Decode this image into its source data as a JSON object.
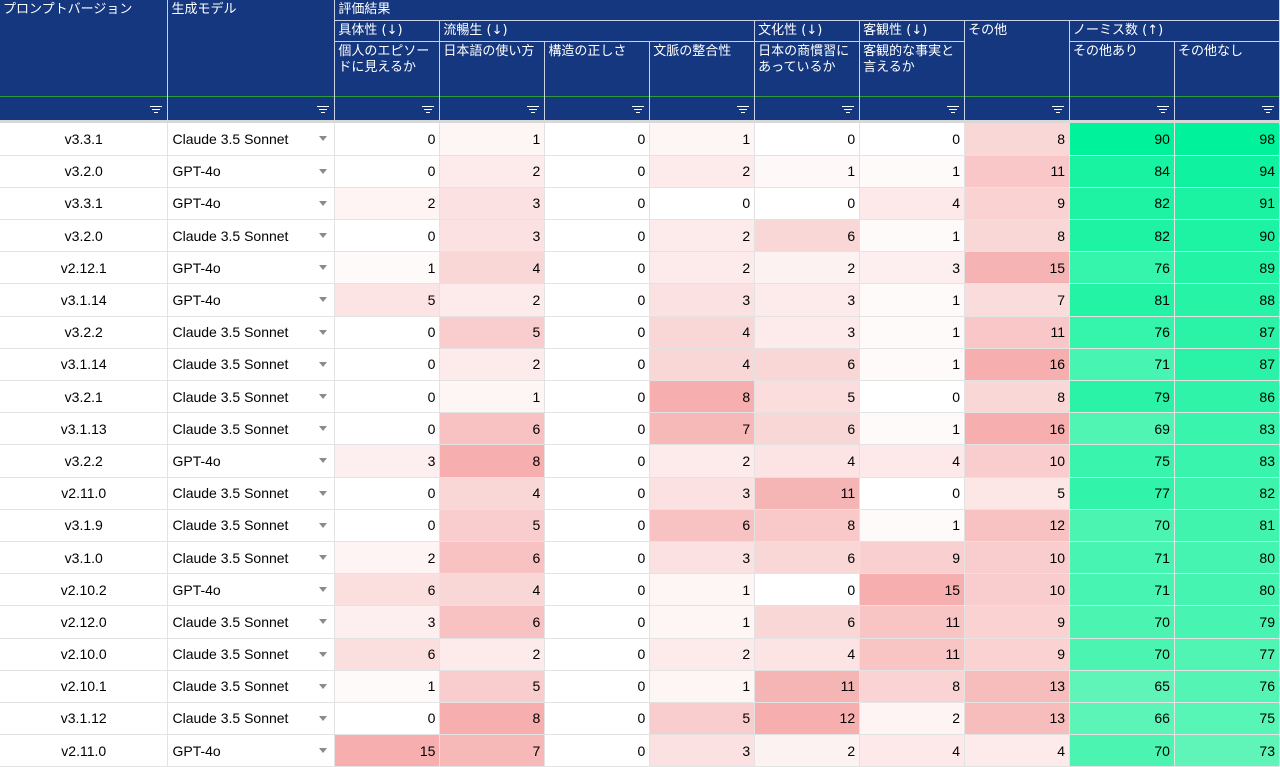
{
  "headers": {
    "prompt_version": "プロンプトバージョン",
    "model": "生成モデル",
    "eval": "評価結果",
    "groups": {
      "specificity": "具体性 (↓)",
      "fluency": "流暢生 (↓)",
      "culture": "文化性 (↓)",
      "objectivity": "客観性 (↓)",
      "other": "その他",
      "norm": "ノーミス数 (↑)"
    },
    "sub": {
      "episode": "個人のエピソードに見えるか",
      "japanese": "日本語の使い方",
      "structure": "構造の正しさ",
      "context": "文脈の整合性",
      "business": "日本の商慣習にあっているか",
      "objective": "客観的な事実と言えるか",
      "with_other": "その他あり",
      "without_other": "その他なし"
    }
  },
  "icons": {
    "filter": "filter-icon",
    "dropdown": "dropdown-arrow-icon"
  },
  "colors": {
    "header_bg": "#14377f",
    "header_text": "#ffffff",
    "filter_line": "#2f9a3a",
    "bad_scale_base": "#ffffff",
    "bad_scale_max": "#f4a0a0",
    "good_scale_min": "#5ff5b8",
    "good_scale_max": "#00f29a"
  },
  "rows": [
    {
      "version": "v3.3.1",
      "model": "Claude 3.5 Sonnet",
      "values": [
        0,
        1,
        0,
        1,
        0,
        0,
        8,
        90,
        98
      ]
    },
    {
      "version": "v3.2.0",
      "model": "GPT-4o",
      "values": [
        0,
        2,
        0,
        2,
        1,
        1,
        11,
        84,
        94
      ]
    },
    {
      "version": "v3.3.1",
      "model": "GPT-4o",
      "values": [
        2,
        3,
        0,
        0,
        0,
        4,
        9,
        82,
        91
      ]
    },
    {
      "version": "v3.2.0",
      "model": "Claude 3.5 Sonnet",
      "values": [
        0,
        3,
        0,
        2,
        6,
        1,
        8,
        82,
        90
      ]
    },
    {
      "version": "v2.12.1",
      "model": "GPT-4o",
      "values": [
        1,
        4,
        0,
        2,
        2,
        3,
        15,
        76,
        89
      ]
    },
    {
      "version": "v3.1.14",
      "model": "GPT-4o",
      "values": [
        5,
        2,
        0,
        3,
        3,
        1,
        7,
        81,
        88
      ]
    },
    {
      "version": "v3.2.2",
      "model": "Claude 3.5 Sonnet",
      "values": [
        0,
        5,
        0,
        4,
        3,
        1,
        11,
        76,
        87
      ]
    },
    {
      "version": "v3.1.14",
      "model": "Claude 3.5 Sonnet",
      "values": [
        0,
        2,
        0,
        4,
        6,
        1,
        16,
        71,
        87
      ]
    },
    {
      "version": "v3.2.1",
      "model": "Claude 3.5 Sonnet",
      "values": [
        0,
        1,
        0,
        8,
        5,
        0,
        8,
        79,
        86
      ]
    },
    {
      "version": "v3.1.13",
      "model": "Claude 3.5 Sonnet",
      "values": [
        0,
        6,
        0,
        7,
        6,
        1,
        16,
        69,
        83
      ]
    },
    {
      "version": "v3.2.2",
      "model": "GPT-4o",
      "values": [
        3,
        8,
        0,
        2,
        4,
        4,
        10,
        75,
        83
      ]
    },
    {
      "version": "v2.11.0",
      "model": "Claude 3.5 Sonnet",
      "values": [
        0,
        4,
        0,
        3,
        11,
        0,
        5,
        77,
        82
      ]
    },
    {
      "version": "v3.1.9",
      "model": "Claude 3.5 Sonnet",
      "values": [
        0,
        5,
        0,
        6,
        8,
        1,
        12,
        70,
        81
      ]
    },
    {
      "version": "v3.1.0",
      "model": "Claude 3.5 Sonnet",
      "values": [
        2,
        6,
        0,
        3,
        6,
        9,
        10,
        71,
        80
      ]
    },
    {
      "version": "v2.10.2",
      "model": "GPT-4o",
      "values": [
        6,
        4,
        0,
        1,
        0,
        15,
        10,
        71,
        80
      ]
    },
    {
      "version": "v2.12.0",
      "model": "Claude 3.5 Sonnet",
      "values": [
        3,
        6,
        0,
        1,
        6,
        11,
        9,
        70,
        79
      ]
    },
    {
      "version": "v2.10.0",
      "model": "Claude 3.5 Sonnet",
      "values": [
        6,
        2,
        0,
        2,
        4,
        11,
        9,
        70,
        77
      ]
    },
    {
      "version": "v2.10.1",
      "model": "Claude 3.5 Sonnet",
      "values": [
        1,
        5,
        0,
        1,
        11,
        8,
        13,
        65,
        76
      ]
    },
    {
      "version": "v3.1.12",
      "model": "Claude 3.5 Sonnet",
      "values": [
        0,
        8,
        0,
        5,
        12,
        2,
        13,
        66,
        75
      ]
    },
    {
      "version": "v2.11.0",
      "model": "GPT-4o",
      "values": [
        15,
        7,
        0,
        3,
        2,
        4,
        4,
        70,
        73
      ]
    }
  ]
}
